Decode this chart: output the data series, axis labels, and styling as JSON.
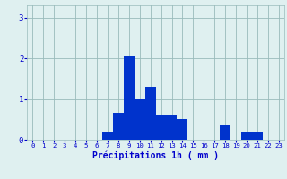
{
  "hours": [
    0,
    1,
    2,
    3,
    4,
    5,
    6,
    7,
    8,
    9,
    10,
    11,
    12,
    13,
    14,
    15,
    16,
    17,
    18,
    19,
    20,
    21,
    22,
    23
  ],
  "values": [
    0,
    0,
    0,
    0,
    0,
    0,
    0,
    0.2,
    0.65,
    2.05,
    1.0,
    1.3,
    0.6,
    0.6,
    0.5,
    0,
    0,
    0,
    0.35,
    0,
    0.2,
    0.2,
    0,
    0
  ],
  "bar_color": "#0033cc",
  "background_color": "#dff0f0",
  "grid_color": "#99bbbb",
  "xlabel": "Précipitations 1h ( mm )",
  "xlabel_color": "#0000cc",
  "tick_color": "#0000cc",
  "ylim": [
    0,
    3.3
  ],
  "yticks": [
    0,
    1,
    2,
    3
  ],
  "xlim": [
    -0.5,
    23.5
  ]
}
